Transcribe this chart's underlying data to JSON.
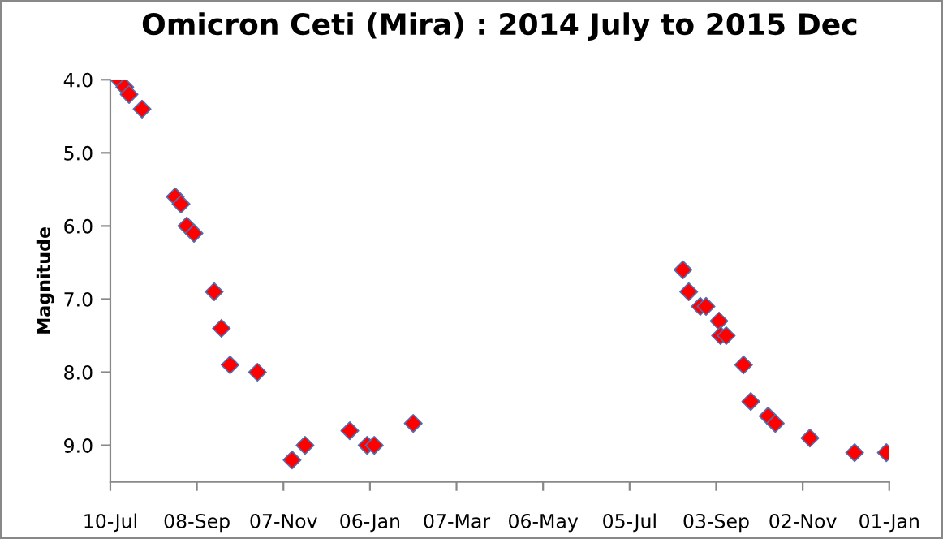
{
  "chart_data": {
    "type": "scatter",
    "title": "Omicron Ceti (Mira) : 2014 July to 2015 Dec",
    "ylabel": "Magnitude",
    "x": [
      "2014-07-16",
      "2014-07-20",
      "2014-07-23",
      "2014-08-01",
      "2014-08-24",
      "2014-08-28",
      "2014-09-01",
      "2014-09-06",
      "2014-09-20",
      "2014-09-25",
      "2014-10-01",
      "2014-10-20",
      "2014-11-13",
      "2014-11-22",
      "2014-12-23",
      "2015-01-04",
      "2015-01-09",
      "2015-02-05",
      "2015-08-11",
      "2015-08-15",
      "2015-08-23",
      "2015-08-27",
      "2015-09-05",
      "2015-09-06",
      "2015-09-10",
      "2015-09-22",
      "2015-09-27",
      "2015-10-09",
      "2015-10-14",
      "2015-11-07",
      "2015-12-08",
      "2015-12-30"
    ],
    "series": [
      {
        "color": "#ff0000",
        "values": [
          4.0,
          4.1,
          4.2,
          4.4,
          5.6,
          5.7,
          6.0,
          6.1,
          6.9,
          7.4,
          7.9,
          8.0,
          9.2,
          9.0,
          8.8,
          9.0,
          9.0,
          8.7,
          6.6,
          6.9,
          7.1,
          7.1,
          7.3,
          7.5,
          7.5,
          7.9,
          8.4,
          8.6,
          8.7,
          8.9,
          9.1,
          9.1
        ]
      }
    ],
    "xlim": [
      "2014-07-10",
      "2016-01-01"
    ],
    "xticks": [
      {
        "value": "2014-07-10",
        "label": "10-Jul"
      },
      {
        "value": "2014-09-08",
        "label": "08-Sep"
      },
      {
        "value": "2014-11-07",
        "label": "07-Nov"
      },
      {
        "value": "2015-01-06",
        "label": "06-Jan"
      },
      {
        "value": "2015-03-07",
        "label": "07-Mar"
      },
      {
        "value": "2015-05-06",
        "label": "06-May"
      },
      {
        "value": "2015-07-05",
        "label": "05-Jul"
      },
      {
        "value": "2015-09-03",
        "label": "03-Sep"
      },
      {
        "value": "2015-11-02",
        "label": "02-Nov"
      },
      {
        "value": "2016-01-01",
        "label": "01-Jan"
      }
    ],
    "ylim": [
      9.5,
      4.0
    ],
    "yticks": [
      {
        "value": 4,
        "label": "4.0"
      },
      {
        "value": 5,
        "label": "5.0"
      },
      {
        "value": 6,
        "label": "6.0"
      },
      {
        "value": 7,
        "label": "7.0"
      },
      {
        "value": 8,
        "label": "8.0"
      },
      {
        "value": 9,
        "label": "9.0"
      }
    ],
    "marker": "diamond",
    "grid": false,
    "legend": false
  }
}
